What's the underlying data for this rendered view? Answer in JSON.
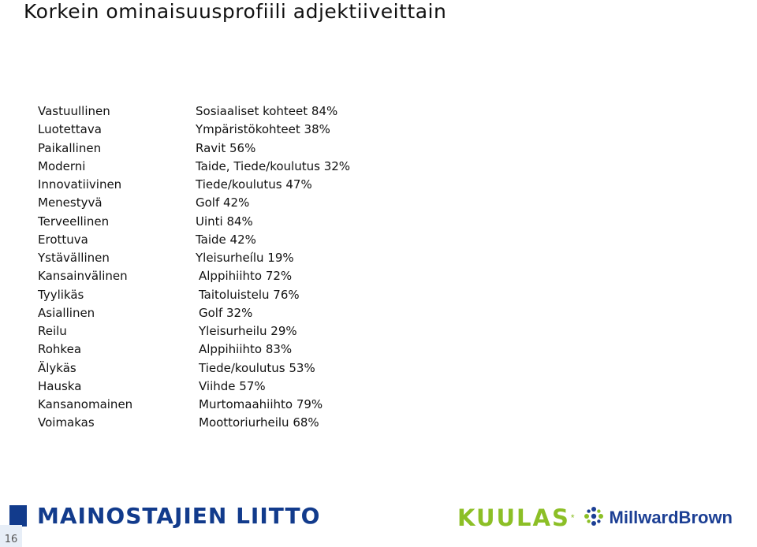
{
  "title": "Korkein ominaisuusprofiili adjektiiveittain",
  "rows": [
    {
      "adjective": "Vastuullinen",
      "value": "Sosiaaliset kohteet 84%"
    },
    {
      "adjective": "Luotettava",
      "value": "Ympäristökohteet 38%"
    },
    {
      "adjective": "Paikallinen",
      "value": "Ravit 56%"
    },
    {
      "adjective": "Moderni",
      "value": "Taide, Tiede/koulutus 32%"
    },
    {
      "adjective": "Innovatiivinen",
      "value": "Tiede/koulutus 47%"
    },
    {
      "adjective": "Menestyvä",
      "value": "Golf 42%"
    },
    {
      "adjective": "Terveellinen",
      "value": "Uinti 84%"
    },
    {
      "adjective": "Erottuva",
      "value": "Taide 42%"
    },
    {
      "adjective": "Ystävällinen",
      "value": "Yleisurheílu 19%"
    },
    {
      "adjective": "Kansainvälinen",
      "value": "Alppihiihto 72%"
    },
    {
      "adjective": "Tyylikäs",
      "value": "Taitoluistelu 76%"
    },
    {
      "adjective": "Asiallinen",
      "value": "Golf 32%"
    },
    {
      "adjective": "Reilu",
      "value": "Yleisurheilu 29%"
    },
    {
      "adjective": "Rohkea",
      "value": "Alppihiihto 83%"
    },
    {
      "adjective": "Älykäs",
      "value": "Tiede/koulutus 53%"
    },
    {
      "adjective": "Hauska",
      "value": "Viihde 57%"
    },
    {
      "adjective": "Kansanomainen",
      "value": "Murtomaahiihto 79%"
    },
    {
      "adjective": "Voimakas",
      "value": "Moottoriurheilu 68%"
    }
  ],
  "footer": {
    "left_logo": "MAINOSTAJIEN LIITTO",
    "page_number": "16",
    "kuulas_logo": "KUULAS",
    "kuulas_star": "*",
    "mb_logo": "MillwardBrown"
  },
  "colors": {
    "mainostajat_blue": "#123b8c",
    "kuulas_green": "#8cbf26",
    "millward_blue": "#1c3f94"
  }
}
